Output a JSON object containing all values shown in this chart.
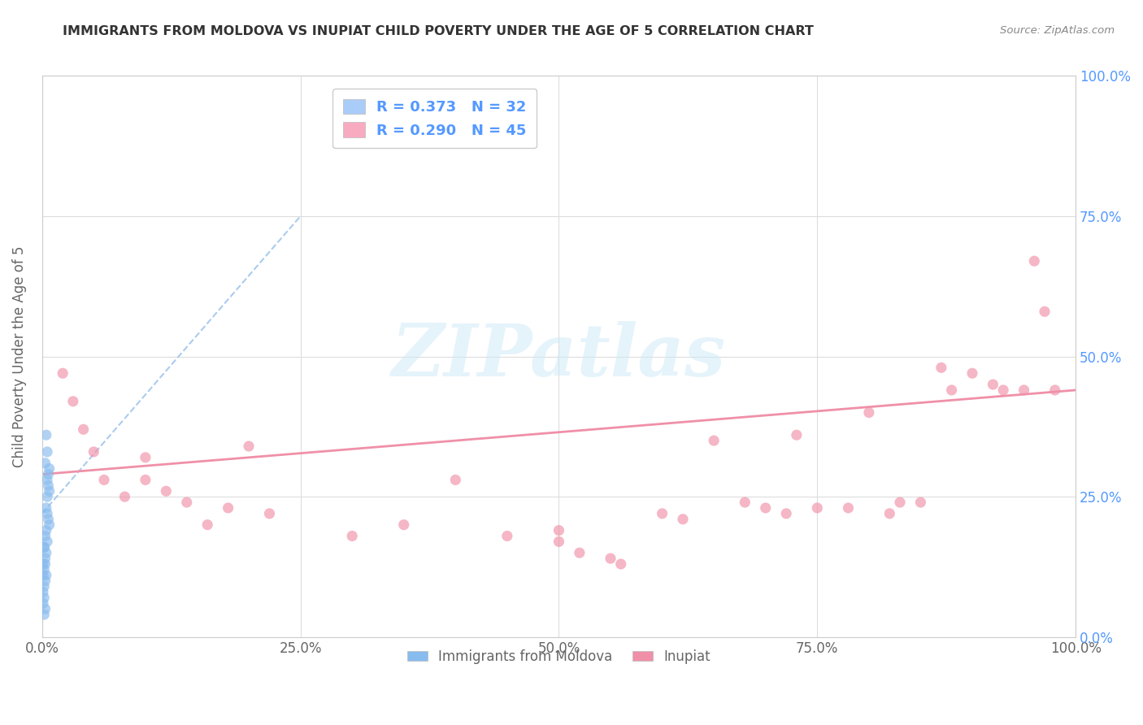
{
  "title": "IMMIGRANTS FROM MOLDOVA VS INUPIAT CHILD POVERTY UNDER THE AGE OF 5 CORRELATION CHART",
  "source": "Source: ZipAtlas.com",
  "ylabel": "Child Poverty Under the Age of 5",
  "xlim": [
    0,
    1.0
  ],
  "ylim": [
    0,
    1.0
  ],
  "xtick_vals": [
    0.0,
    0.25,
    0.5,
    0.75,
    1.0
  ],
  "xtick_labels": [
    "0.0%",
    "25.0%",
    "50.0%",
    "75.0%",
    "100.0%"
  ],
  "ytick_vals": [
    0.0,
    0.25,
    0.5,
    0.75,
    1.0
  ],
  "ytick_labels_right": [
    "0.0%",
    "25.0%",
    "50.0%",
    "75.0%",
    "100.0%"
  ],
  "legend_items": [
    {
      "label": "R = 0.373   N = 32",
      "color": "#aaccf8"
    },
    {
      "label": "R = 0.290   N = 45",
      "color": "#f8aac0"
    }
  ],
  "watermark_text": "ZIPatlas",
  "moldova_color": "#88bbee",
  "inupiat_color": "#f090a8",
  "moldova_line_color": "#aaccee",
  "inupiat_line_color": "#f090a8",
  "moldova_scatter": [
    [
      0.003,
      0.31
    ],
    [
      0.004,
      0.36
    ],
    [
      0.005,
      0.28
    ],
    [
      0.005,
      0.33
    ],
    [
      0.007,
      0.3
    ],
    [
      0.006,
      0.27
    ],
    [
      0.005,
      0.25
    ],
    [
      0.006,
      0.29
    ],
    [
      0.007,
      0.26
    ],
    [
      0.004,
      0.23
    ],
    [
      0.005,
      0.22
    ],
    [
      0.006,
      0.21
    ],
    [
      0.007,
      0.2
    ],
    [
      0.004,
      0.19
    ],
    [
      0.003,
      0.18
    ],
    [
      0.005,
      0.17
    ],
    [
      0.004,
      0.15
    ],
    [
      0.003,
      0.14
    ],
    [
      0.002,
      0.16
    ],
    [
      0.003,
      0.13
    ],
    [
      0.002,
      0.12
    ],
    [
      0.004,
      0.11
    ],
    [
      0.003,
      0.1
    ],
    [
      0.002,
      0.09
    ],
    [
      0.001,
      0.08
    ],
    [
      0.002,
      0.07
    ],
    [
      0.001,
      0.06
    ],
    [
      0.003,
      0.05
    ],
    [
      0.002,
      0.04
    ],
    [
      0.001,
      0.13
    ],
    [
      0.001,
      0.11
    ],
    [
      0.002,
      0.16
    ]
  ],
  "inupiat_scatter": [
    [
      0.02,
      0.47
    ],
    [
      0.03,
      0.42
    ],
    [
      0.04,
      0.37
    ],
    [
      0.05,
      0.33
    ],
    [
      0.06,
      0.28
    ],
    [
      0.08,
      0.25
    ],
    [
      0.1,
      0.32
    ],
    [
      0.1,
      0.28
    ],
    [
      0.12,
      0.26
    ],
    [
      0.14,
      0.24
    ],
    [
      0.16,
      0.2
    ],
    [
      0.18,
      0.23
    ],
    [
      0.2,
      0.34
    ],
    [
      0.22,
      0.22
    ],
    [
      0.3,
      0.18
    ],
    [
      0.35,
      0.2
    ],
    [
      0.4,
      0.28
    ],
    [
      0.45,
      0.18
    ],
    [
      0.5,
      0.19
    ],
    [
      0.5,
      0.17
    ],
    [
      0.52,
      0.15
    ],
    [
      0.55,
      0.14
    ],
    [
      0.56,
      0.13
    ],
    [
      0.6,
      0.22
    ],
    [
      0.62,
      0.21
    ],
    [
      0.65,
      0.35
    ],
    [
      0.68,
      0.24
    ],
    [
      0.7,
      0.23
    ],
    [
      0.72,
      0.22
    ],
    [
      0.73,
      0.36
    ],
    [
      0.75,
      0.23
    ],
    [
      0.78,
      0.23
    ],
    [
      0.8,
      0.4
    ],
    [
      0.82,
      0.22
    ],
    [
      0.83,
      0.24
    ],
    [
      0.85,
      0.24
    ],
    [
      0.87,
      0.48
    ],
    [
      0.88,
      0.44
    ],
    [
      0.9,
      0.47
    ],
    [
      0.92,
      0.45
    ],
    [
      0.93,
      0.44
    ],
    [
      0.95,
      0.44
    ],
    [
      0.96,
      0.67
    ],
    [
      0.97,
      0.58
    ],
    [
      0.98,
      0.44
    ]
  ],
  "moldova_line": [
    [
      0.0,
      0.22
    ],
    [
      0.25,
      0.75
    ]
  ],
  "inupiat_line": [
    [
      0.0,
      0.29
    ],
    [
      1.0,
      0.44
    ]
  ],
  "background_color": "#ffffff",
  "grid_color": "#dddddd",
  "title_color": "#333333",
  "axis_label_color": "#666666",
  "right_axis_color": "#5599ff"
}
